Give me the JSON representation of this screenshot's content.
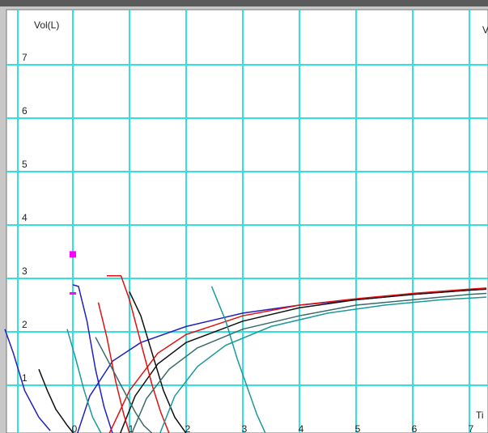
{
  "chart_data": {
    "type": "line",
    "y_label": "Vol(L)",
    "y2_label": "V",
    "x_label": "Ti",
    "xlim": [
      -1.2,
      7.3
    ],
    "ylim": [
      0,
      8
    ],
    "xticks": [
      0,
      1,
      2,
      3,
      4,
      5,
      6,
      7
    ],
    "yticks": [
      1,
      2,
      3,
      4,
      5,
      6,
      7
    ],
    "grid": true,
    "markers": {
      "color": "#ff00ff",
      "x": [
        0,
        0
      ],
      "values": [
        3.45,
        2.72
      ]
    },
    "series": [
      {
        "color": "#2020c0",
        "x": [
          -1.2,
          -1.05,
          -0.85,
          -0.6,
          -0.4,
          null,
          0.0,
          0.1,
          0.25,
          0.4,
          0.55,
          0.7,
          null,
          0.05,
          0.3,
          0.7,
          1.2,
          2,
          3,
          4,
          5,
          6,
          7,
          7.3
        ],
        "values": [
          2.05,
          1.6,
          0.9,
          0.4,
          0.15,
          null,
          2.88,
          2.85,
          2.2,
          1.3,
          0.6,
          0.1,
          null,
          0,
          0.8,
          1.45,
          1.8,
          2.1,
          2.35,
          2.5,
          2.6,
          2.7,
          2.78,
          2.8
        ]
      },
      {
        "color": "#101010",
        "x": [
          -0.6,
          -0.45,
          -0.3,
          -0.1,
          0.05,
          null,
          1.0,
          1.2,
          1.4,
          1.6,
          1.8,
          2.0,
          null,
          0.8,
          1.1,
          1.5,
          2,
          3,
          4,
          5,
          6,
          7,
          7.3
        ],
        "values": [
          1.3,
          0.9,
          0.55,
          0.25,
          0.05,
          null,
          2.75,
          2.3,
          1.6,
          0.9,
          0.4,
          0.1,
          null,
          0,
          0.8,
          1.4,
          1.8,
          2.2,
          2.45,
          2.6,
          2.7,
          2.78,
          2.8
        ]
      },
      {
        "color": "#e01010",
        "x": [
          0.45,
          0.6,
          0.75,
          0.9,
          1.0,
          null,
          0.6,
          0.85,
          1.0,
          1.2,
          1.4,
          1.55,
          1.7,
          null,
          0.6,
          1.0,
          1.5,
          2,
          3,
          4,
          5,
          6,
          7,
          7.3
        ],
        "values": [
          2.55,
          1.9,
          1.1,
          0.45,
          0.1,
          null,
          3.05,
          3.05,
          2.6,
          1.8,
          1.0,
          0.5,
          0.1,
          null,
          0,
          0.9,
          1.6,
          1.95,
          2.3,
          2.5,
          2.62,
          2.72,
          2.8,
          2.82
        ]
      },
      {
        "color": "#1a9a9a",
        "x": [
          -0.1,
          0.05,
          0.2,
          0.35,
          0.5,
          null,
          2.45,
          2.7,
          2.9,
          3.1,
          3.25,
          3.4,
          null,
          1.5,
          1.8,
          2.2,
          2.7,
          3.5,
          4.5,
          5.5,
          6.5,
          7.3
        ],
        "values": [
          2.05,
          1.5,
          0.9,
          0.4,
          0.1,
          null,
          2.85,
          2.2,
          1.5,
          0.9,
          0.45,
          0.1,
          null,
          0,
          0.8,
          1.35,
          1.75,
          2.1,
          2.35,
          2.5,
          2.6,
          2.65
        ]
      },
      {
        "color": "#3a6a6a",
        "x": [
          0.4,
          0.65,
          0.9,
          1.1,
          1.25,
          1.4,
          null,
          1.0,
          1.3,
          1.7,
          2.2,
          3,
          4,
          5,
          6,
          7,
          7.3
        ],
        "values": [
          1.9,
          1.4,
          0.9,
          0.5,
          0.25,
          0.1,
          null,
          0,
          0.75,
          1.3,
          1.7,
          2.05,
          2.3,
          2.5,
          2.6,
          2.7,
          2.72
        ]
      }
    ]
  }
}
